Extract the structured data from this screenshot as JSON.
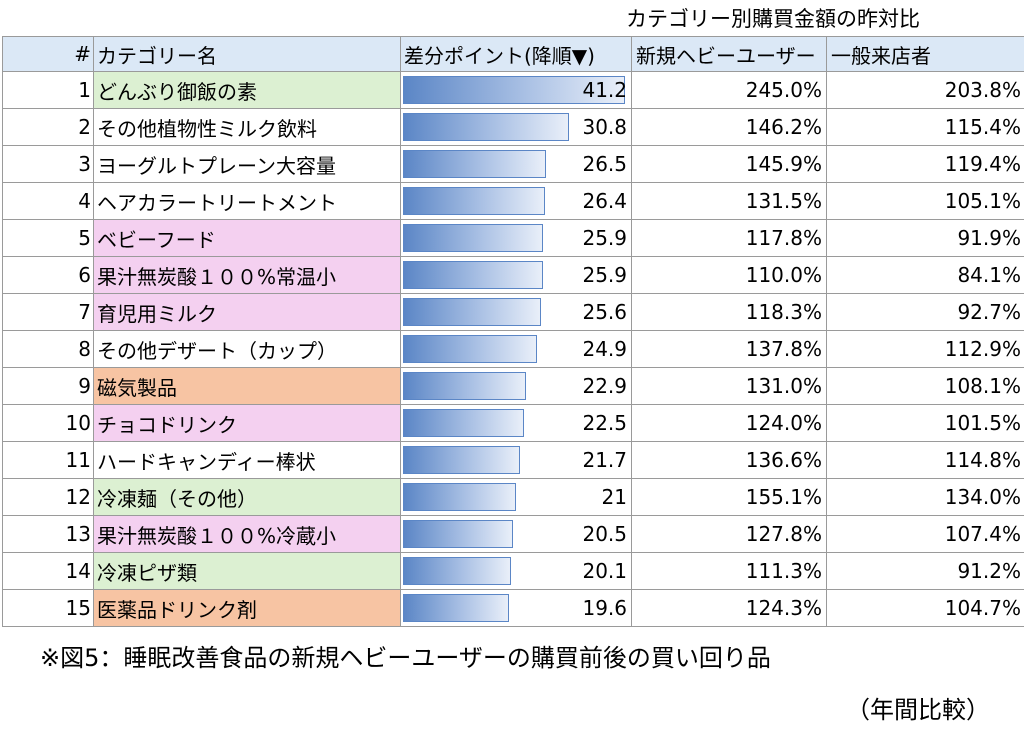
{
  "super_title": "カテゴリー別購買金額の昨対比",
  "headers": {
    "num": "#",
    "category": "カテゴリー名",
    "diff": "差分ポイント(降順▼)",
    "new_heavy": "新規ヘビーユーザー",
    "general": "一般来店者"
  },
  "colors": {
    "header_bg": "#dbe8f6",
    "green": "#dcf0d2",
    "pink": "#f4d0f0",
    "orange": "#f7c4a3",
    "bar": "#5b86c6"
  },
  "chart_data": {
    "type": "table",
    "diff_max": 41.2,
    "rows": [
      {
        "num": "1",
        "category": "どんぶり御飯の素",
        "diff": 41.2,
        "diff_label": "41.2",
        "new_heavy": "245.0%",
        "general": "203.8%",
        "highlight": "green"
      },
      {
        "num": "2",
        "category": "その他植物性ミルク飲料",
        "diff": 30.8,
        "diff_label": "30.8",
        "new_heavy": "146.2%",
        "general": "115.4%",
        "highlight": ""
      },
      {
        "num": "3",
        "category": "ヨーグルトプレーン大容量",
        "diff": 26.5,
        "diff_label": "26.5",
        "new_heavy": "145.9%",
        "general": "119.4%",
        "highlight": ""
      },
      {
        "num": "4",
        "category": "ヘアカラートリートメント",
        "diff": 26.4,
        "diff_label": "26.4",
        "new_heavy": "131.5%",
        "general": "105.1%",
        "highlight": ""
      },
      {
        "num": "5",
        "category": "ベビーフード",
        "diff": 25.9,
        "diff_label": "25.9",
        "new_heavy": "117.8%",
        "general": "91.9%",
        "highlight": "pink"
      },
      {
        "num": "6",
        "category": "果汁無炭酸１００%常温小",
        "diff": 25.9,
        "diff_label": "25.9",
        "new_heavy": "110.0%",
        "general": "84.1%",
        "highlight": "pink"
      },
      {
        "num": "7",
        "category": "育児用ミルク",
        "diff": 25.6,
        "diff_label": "25.6",
        "new_heavy": "118.3%",
        "general": "92.7%",
        "highlight": "pink"
      },
      {
        "num": "8",
        "category": "その他デザート（カップ）",
        "diff": 24.9,
        "diff_label": "24.9",
        "new_heavy": "137.8%",
        "general": "112.9%",
        "highlight": ""
      },
      {
        "num": "9",
        "category": "磁気製品",
        "diff": 22.9,
        "diff_label": "22.9",
        "new_heavy": "131.0%",
        "general": "108.1%",
        "highlight": "orange"
      },
      {
        "num": "10",
        "category": "チョコドリンク",
        "diff": 22.5,
        "diff_label": "22.5",
        "new_heavy": "124.0%",
        "general": "101.5%",
        "highlight": "pink"
      },
      {
        "num": "11",
        "category": "ハードキャンディー棒状",
        "diff": 21.7,
        "diff_label": "21.7",
        "new_heavy": "136.6%",
        "general": "114.8%",
        "highlight": ""
      },
      {
        "num": "12",
        "category": "冷凍麺（その他）",
        "diff": 21.0,
        "diff_label": "21",
        "new_heavy": "155.1%",
        "general": "134.0%",
        "highlight": "green"
      },
      {
        "num": "13",
        "category": "果汁無炭酸１００%冷蔵小",
        "diff": 20.5,
        "diff_label": "20.5",
        "new_heavy": "127.8%",
        "general": "107.4%",
        "highlight": "pink"
      },
      {
        "num": "14",
        "category": "冷凍ピザ類",
        "diff": 20.1,
        "diff_label": "20.1",
        "new_heavy": "111.3%",
        "general": "91.2%",
        "highlight": "green"
      },
      {
        "num": "15",
        "category": "医薬品ドリンク剤",
        "diff": 19.6,
        "diff_label": "19.6",
        "new_heavy": "124.3%",
        "general": "104.7%",
        "highlight": "orange"
      }
    ]
  },
  "caption": {
    "line1": "※図5：睡眠改善食品の新規ヘビーユーザーの購買前後の買い回り品",
    "line2": "（年間比較）"
  }
}
